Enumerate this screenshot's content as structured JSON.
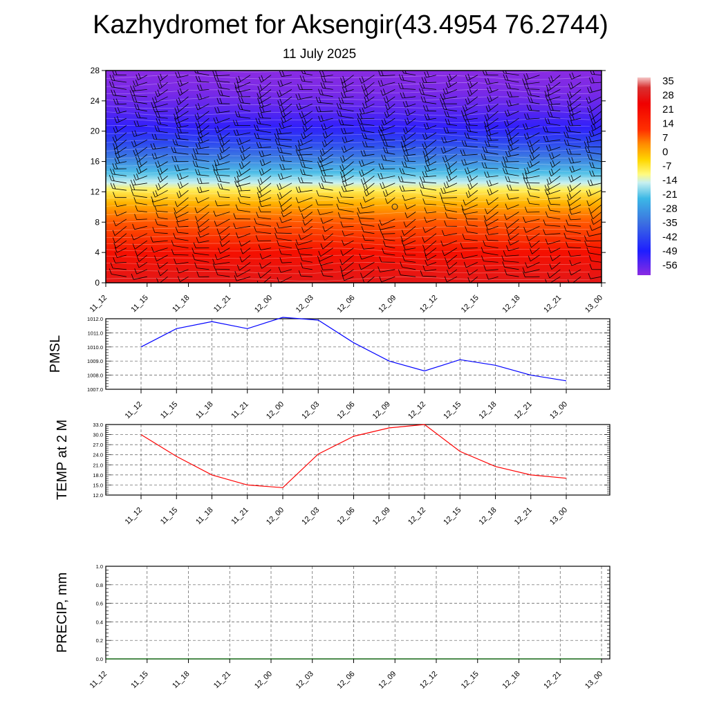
{
  "title": "Kazhydromet for Aksengir(43.4954 76.2744)",
  "subtitle": "11 July 2025",
  "time_labels": [
    "11_12",
    "11_15",
    "11_18",
    "11_21",
    "12_00",
    "12_03",
    "12_06",
    "12_09",
    "12_12",
    "12_15",
    "12_18",
    "12_21",
    "13_00"
  ],
  "colors": {
    "pmsl_line": "#0000ff",
    "temp_line": "#ff0000",
    "precip_line": "#006400",
    "grid": "#555555",
    "frame": "#000000",
    "barb": "#000000",
    "contour": "#ffffff"
  },
  "chart_data": [
    {
      "type": "heatmap",
      "x": [
        "11_12",
        "11_15",
        "11_18",
        "11_21",
        "12_00",
        "12_03",
        "12_06",
        "12_09",
        "12_12",
        "12_15",
        "12_18",
        "12_21",
        "13_00"
      ],
      "ylim": [
        0,
        28
      ],
      "yticks": [
        0,
        4,
        8,
        12,
        16,
        20,
        24,
        28
      ],
      "colorbar": {
        "labels": [
          "35",
          "28",
          "21",
          "14",
          "7",
          "0",
          "-7",
          "-14",
          "-21",
          "-28",
          "-35",
          "-42",
          "-49",
          "-56"
        ],
        "range": [
          -60,
          38
        ],
        "stops": [
          {
            "v": 38,
            "c": "#f5c8c8"
          },
          {
            "v": 33,
            "c": "#d83030"
          },
          {
            "v": 25,
            "c": "#f00000"
          },
          {
            "v": 12,
            "c": "#ff3000"
          },
          {
            "v": 5,
            "c": "#ff8c00"
          },
          {
            "v": -3,
            "c": "#ffd700"
          },
          {
            "v": -10,
            "c": "#fffa80"
          },
          {
            "v": -14,
            "c": "#c8f0f0"
          },
          {
            "v": -22,
            "c": "#3cb8e6"
          },
          {
            "v": -34,
            "c": "#3c70e0"
          },
          {
            "v": -48,
            "c": "#1e1eff"
          },
          {
            "v": -60,
            "c": "#8a2be2"
          }
        ]
      },
      "profile": [
        {
          "h": 0,
          "t": 29
        },
        {
          "h": 4,
          "t": 21
        },
        {
          "h": 8,
          "t": 9
        },
        {
          "h": 10.5,
          "t": 1
        },
        {
          "h": 12.3,
          "t": -8
        },
        {
          "h": 13.2,
          "t": -14
        },
        {
          "h": 14.5,
          "t": -21
        },
        {
          "h": 16.5,
          "t": -32
        },
        {
          "h": 18.5,
          "t": -41
        },
        {
          "h": 20.5,
          "t": -50
        },
        {
          "h": 23,
          "t": -55
        },
        {
          "h": 25,
          "t": -58
        },
        {
          "h": 28,
          "t": -60
        }
      ],
      "surface_warm_anomaly": {
        "center_time_index": 8,
        "peak": 8
      }
    },
    {
      "type": "line",
      "ylabel": "PMSL",
      "x": [
        "11_12",
        "11_15",
        "11_18",
        "11_21",
        "12_00",
        "12_03",
        "12_06",
        "12_09",
        "12_12",
        "12_15",
        "12_18",
        "12_21",
        "13_00"
      ],
      "series": [
        {
          "values": [
            1010.0,
            1011.3,
            1011.8,
            1011.3,
            1012.1,
            1011.9,
            1010.3,
            1009.0,
            1008.3,
            1009.1,
            1008.7,
            1008.0,
            1007.6
          ]
        }
      ],
      "ylim": [
        1007.0,
        1012.0
      ],
      "yticks": [
        "1007.0",
        "1008.0",
        "1009.0",
        "1010.0",
        "1011.0",
        "1012.0"
      ]
    },
    {
      "type": "line",
      "ylabel": "TEMP at 2 M",
      "x": [
        "11_12",
        "11_15",
        "11_18",
        "11_21",
        "12_00",
        "12_03",
        "12_06",
        "12_09",
        "12_12",
        "12_15",
        "12_18",
        "12_21",
        "13_00"
      ],
      "series": [
        {
          "values": [
            30.0,
            23.5,
            18.0,
            15.0,
            14.2,
            24.2,
            29.5,
            32.0,
            33.0,
            25.0,
            20.5,
            18.0,
            17.0
          ]
        }
      ],
      "ylim": [
        12.0,
        33.0
      ],
      "yticks": [
        "12.0",
        "15.0",
        "18.0",
        "21.0",
        "24.0",
        "27.0",
        "30.0",
        "33.0"
      ]
    },
    {
      "type": "line",
      "ylabel": "PRECIP, mm",
      "x": [
        "11_12",
        "11_15",
        "11_18",
        "11_21",
        "12_00",
        "12_03",
        "12_06",
        "12_09",
        "12_12",
        "12_15",
        "12_18",
        "12_21",
        "13_00"
      ],
      "series": [
        {
          "values": [
            0,
            0,
            0,
            0,
            0,
            0,
            0,
            0,
            0,
            0,
            0,
            0,
            0
          ]
        }
      ],
      "ylim": [
        0,
        1.0
      ],
      "yticks": [
        "0.0",
        "0.2",
        "0.4",
        "0.6",
        "0.8",
        "1.0"
      ]
    }
  ]
}
